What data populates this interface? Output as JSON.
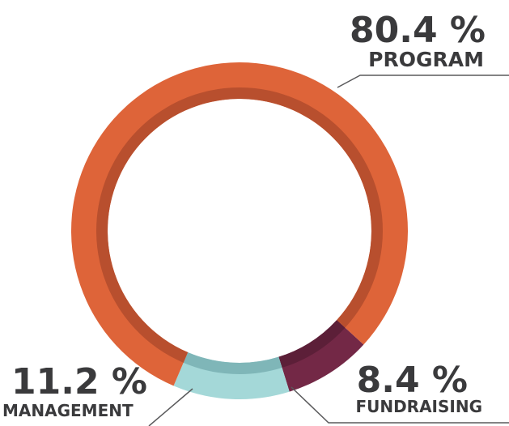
{
  "chart_data": {
    "type": "pie",
    "variant": "donut",
    "slices": [
      {
        "label": "PROGRAM",
        "value": 80.4,
        "value_label": "80.4 %",
        "color": "#de6439",
        "shadow": "#b84f2e"
      },
      {
        "label": "FUNDRAISING",
        "value": 8.4,
        "value_label": "8.4 %",
        "color": "#732846",
        "shadow": "#5c1f38"
      },
      {
        "label": "MANAGEMENT",
        "value": 11.2,
        "value_label": "11.2 %",
        "color": "#a4d8d8",
        "shadow": "#7fb6b8"
      }
    ],
    "legend": "none",
    "leader_line_color": "#5a5a5c"
  }
}
